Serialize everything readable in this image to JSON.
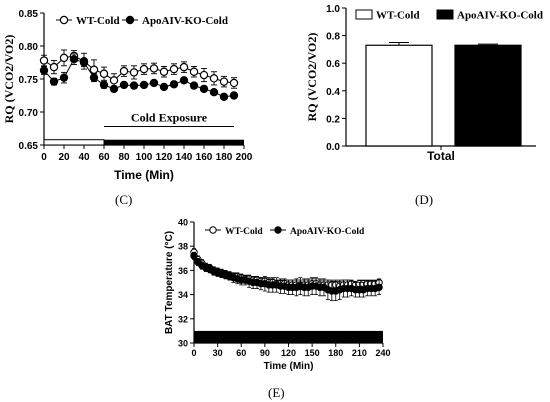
{
  "panel_labels": [
    "(C)",
    "(D)",
    "(E)"
  ],
  "chart_data": [
    {
      "type": "line",
      "panel": "(C)",
      "xlabel": "Time (Min)",
      "ylabel": "RQ (VCO2/VO2)",
      "xlim": [
        0,
        200
      ],
      "ylim": [
        0.65,
        0.85
      ],
      "x_ticks": [
        "0",
        "20",
        "40",
        "60",
        "80",
        "100",
        "120",
        "140",
        "160",
        "180",
        "200"
      ],
      "y_ticks": [
        "0.65",
        "0.70",
        "0.75",
        "0.80",
        "0.85"
      ],
      "legend": "top-left",
      "annotation": {
        "text": "Cold Exposure",
        "bar": {
          "light_phase": [
            0,
            60
          ],
          "dark_phase": [
            60,
            200
          ]
        },
        "bracket": [
          60,
          190
        ],
        "bracket_y": 0.678
      },
      "x": [
        0,
        10,
        20,
        30,
        40,
        50,
        60,
        70,
        80,
        90,
        100,
        110,
        120,
        130,
        140,
        150,
        160,
        170,
        180,
        190
      ],
      "series": [
        {
          "name": "WT-Cold",
          "marker": "open-circle",
          "values": [
            0.778,
            0.768,
            0.782,
            0.785,
            0.777,
            0.764,
            0.758,
            0.748,
            0.762,
            0.76,
            0.765,
            0.766,
            0.761,
            0.765,
            0.768,
            0.761,
            0.756,
            0.751,
            0.746,
            0.744
          ],
          "errors": [
            0.008,
            0.01,
            0.012,
            0.008,
            0.012,
            0.015,
            0.01,
            0.01,
            0.008,
            0.01,
            0.008,
            0.008,
            0.008,
            0.008,
            0.008,
            0.008,
            0.01,
            0.01,
            0.008,
            0.008
          ]
        },
        {
          "name": "ApoAIV-KO-Cold",
          "marker": "filled-circle",
          "values": [
            0.763,
            0.746,
            0.752,
            0.78,
            0.775,
            0.752,
            0.741,
            0.735,
            0.741,
            0.74,
            0.741,
            0.744,
            0.738,
            0.742,
            0.748,
            0.74,
            0.735,
            0.73,
            0.723,
            0.725
          ],
          "errors": [
            0.006,
            0.005,
            0.008,
            0.008,
            0.006,
            0.006,
            0.005,
            0.004,
            0.004,
            0.004,
            0.004,
            0.004,
            0.004,
            0.004,
            0.004,
            0.004,
            0.004,
            0.004,
            0.004,
            0.004
          ]
        }
      ]
    },
    {
      "type": "bar",
      "panel": "(D)",
      "xlabel": "Total",
      "ylabel": "RQ (VCO2/VO2)",
      "ylim": [
        0,
        1.0
      ],
      "y_ticks": [
        "0.0",
        "0.2",
        "0.4",
        "0.6",
        "0.8",
        "1.0"
      ],
      "legend": "top",
      "categories": [
        "Total"
      ],
      "series": [
        {
          "name": "WT-Cold",
          "fill": "#ffffff",
          "values": [
            0.73
          ],
          "errors": [
            0.02
          ]
        },
        {
          "name": "ApoAIV-KO-Cold",
          "fill": "#000000",
          "values": [
            0.73
          ],
          "errors": [
            0.008
          ]
        }
      ]
    },
    {
      "type": "line",
      "panel": "(E)",
      "xlabel": "Time (Min)",
      "ylabel": "BAT Temperature  (°C)",
      "xlim": [
        0,
        240
      ],
      "ylim": [
        30,
        40
      ],
      "x_ticks": [
        "0",
        "30",
        "60",
        "90",
        "120",
        "150",
        "180",
        "210",
        "240"
      ],
      "y_ticks": [
        "30",
        "32",
        "34",
        "36",
        "38",
        "40"
      ],
      "legend": "top-left",
      "dark_bar": [
        0,
        240
      ],
      "x": [
        0,
        5,
        10,
        15,
        20,
        25,
        30,
        35,
        40,
        45,
        50,
        55,
        60,
        65,
        70,
        75,
        80,
        85,
        90,
        95,
        100,
        105,
        110,
        115,
        120,
        125,
        130,
        135,
        140,
        145,
        150,
        155,
        160,
        165,
        170,
        175,
        180,
        185,
        190,
        195,
        200,
        205,
        210,
        215,
        220,
        225,
        230,
        235
      ],
      "series": [
        {
          "name": "WT-Cold",
          "marker": "open-circle",
          "values": [
            37.5,
            36.9,
            36.6,
            36.3,
            36.2,
            36.0,
            35.9,
            35.8,
            35.7,
            35.6,
            35.5,
            35.5,
            35.4,
            35.3,
            35.3,
            35.2,
            35.2,
            35.1,
            35.1,
            35.0,
            35.0,
            34.9,
            34.9,
            34.9,
            34.8,
            34.8,
            34.8,
            34.8,
            34.8,
            34.8,
            34.9,
            34.9,
            34.8,
            34.8,
            34.8,
            34.8,
            34.8,
            34.7,
            34.8,
            34.8,
            34.9,
            34.8,
            34.9,
            34.9,
            34.9,
            34.9,
            34.9,
            35.0
          ],
          "errors": [
            0.3,
            0.3,
            0.3,
            0.3,
            0.3,
            0.3,
            0.3,
            0.3,
            0.3,
            0.3,
            0.3,
            0.3,
            0.3,
            0.3,
            0.3,
            0.3,
            0.3,
            0.3,
            0.3,
            0.3,
            0.3,
            0.3,
            0.3,
            0.3,
            0.4,
            0.4,
            0.4,
            0.4,
            0.4,
            0.4,
            0.4,
            0.4,
            0.4,
            0.4,
            0.4,
            0.4,
            0.4,
            0.4,
            0.4,
            0.4,
            0.3,
            0.3,
            0.3,
            0.3,
            0.3,
            0.3,
            0.3,
            0.3
          ]
        },
        {
          "name": "ApoAIV-KO-Cold",
          "marker": "filled-circle",
          "values": [
            37.2,
            36.7,
            36.4,
            36.2,
            36.1,
            35.9,
            35.8,
            35.7,
            35.6,
            35.5,
            35.4,
            35.3,
            35.2,
            35.2,
            35.1,
            35.0,
            35.0,
            34.9,
            34.9,
            34.8,
            34.8,
            34.8,
            34.7,
            34.7,
            34.6,
            34.6,
            34.6,
            34.7,
            34.6,
            34.6,
            34.7,
            34.7,
            34.6,
            34.6,
            34.4,
            34.3,
            34.3,
            34.4,
            34.5,
            34.5,
            34.5,
            34.4,
            34.4,
            34.4,
            34.5,
            34.5,
            34.5,
            34.6
          ],
          "errors": [
            0.3,
            0.3,
            0.3,
            0.3,
            0.3,
            0.3,
            0.3,
            0.3,
            0.3,
            0.3,
            0.4,
            0.4,
            0.4,
            0.4,
            0.5,
            0.5,
            0.5,
            0.5,
            0.6,
            0.6,
            0.6,
            0.6,
            0.6,
            0.6,
            0.6,
            0.6,
            0.7,
            0.7,
            0.7,
            0.7,
            0.7,
            0.7,
            0.7,
            0.7,
            0.8,
            0.8,
            0.8,
            0.8,
            0.7,
            0.7,
            0.6,
            0.6,
            0.6,
            0.6,
            0.6,
            0.6,
            0.6,
            0.6
          ]
        }
      ]
    }
  ]
}
